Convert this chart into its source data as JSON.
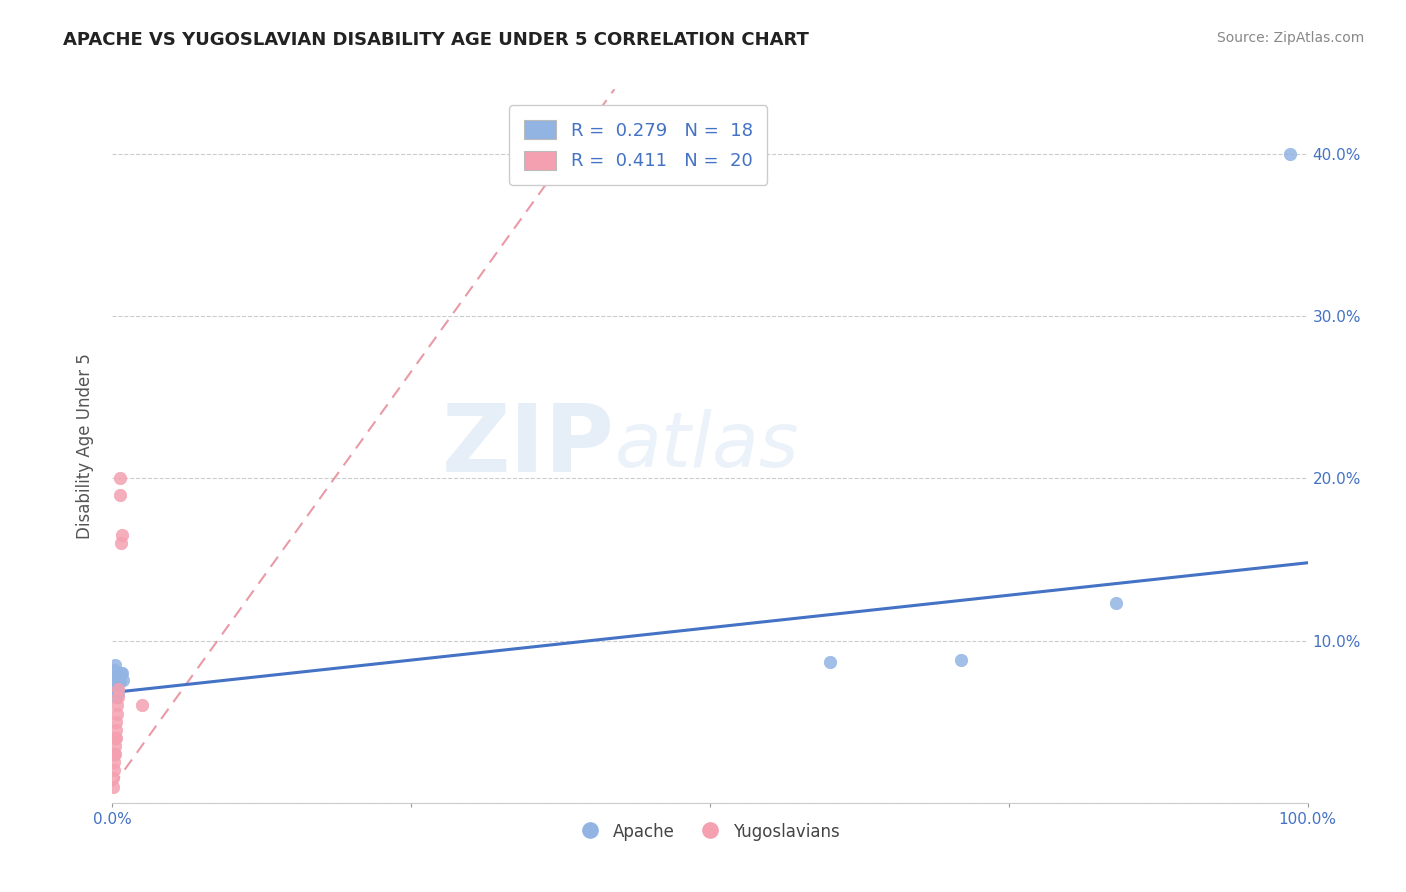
{
  "title": "APACHE VS YUGOSLAVIAN DISABILITY AGE UNDER 5 CORRELATION CHART",
  "source": "Source: ZipAtlas.com",
  "ylabel": "Disability Age Under 5",
  "xlim": [
    0.0,
    1.0
  ],
  "ylim": [
    0.0,
    0.44
  ],
  "apache_color": "#92b4e3",
  "yugoslav_color": "#f4a0b0",
  "apache_line_color": "#4472c4",
  "yugoslav_line_color": "#e07080",
  "legend_text_color": "#4472c4",
  "apache_R": "0.279",
  "apache_N": "18",
  "yugoslav_R": "0.411",
  "yugoslav_N": "20",
  "watermark_zip": "ZIP",
  "watermark_atlas": "atlas",
  "apache_scatter_x": [
    0.001,
    0.001,
    0.002,
    0.002,
    0.003,
    0.003,
    0.004,
    0.004,
    0.005,
    0.005,
    0.006,
    0.007,
    0.008,
    0.009,
    0.6,
    0.71,
    0.84,
    0.985
  ],
  "apache_scatter_y": [
    0.075,
    0.082,
    0.078,
    0.085,
    0.065,
    0.07,
    0.072,
    0.078,
    0.068,
    0.075,
    0.075,
    0.08,
    0.08,
    0.076,
    0.087,
    0.088,
    0.123,
    0.4
  ],
  "yugoslav_scatter_x": [
    0.0005,
    0.0005,
    0.001,
    0.001,
    0.001,
    0.002,
    0.002,
    0.002,
    0.003,
    0.003,
    0.003,
    0.004,
    0.004,
    0.005,
    0.005,
    0.006,
    0.006,
    0.007,
    0.008,
    0.025
  ],
  "yugoslav_scatter_y": [
    0.01,
    0.015,
    0.02,
    0.025,
    0.03,
    0.03,
    0.035,
    0.04,
    0.04,
    0.045,
    0.05,
    0.055,
    0.06,
    0.065,
    0.07,
    0.19,
    0.2,
    0.16,
    0.165,
    0.06
  ],
  "apache_trendline_x": [
    0.0,
    1.0
  ],
  "apache_trendline_y": [
    0.068,
    0.148
  ],
  "yugoslav_trendline_x": [
    0.0,
    0.42
  ],
  "yugoslav_trendline_y": [
    0.01,
    0.44
  ],
  "grid_color": "#cccccc",
  "background_color": "#ffffff",
  "title_color": "#222222",
  "source_color": "#888888",
  "tick_label_color": "#4472c4",
  "ylabel_color": "#555555"
}
